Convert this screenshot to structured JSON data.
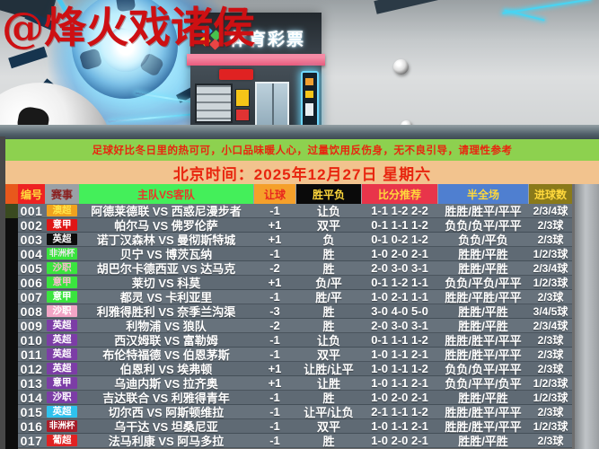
{
  "watermark": "@烽火戏诸侯",
  "hero": {
    "store_sign": "体育彩票",
    "store_sign_logo": "sports-lottery-logo"
  },
  "notice": {
    "text": "足球好比冬日里的热可可，小口品味暖人心，过量饮用反伤身，无不良引导，请理性参考",
    "bg": "#8dd14f",
    "fg": "#e8250f"
  },
  "date_bar": {
    "text": "北京时间：2025年12月27日 星期六",
    "bg": "#f2c38e",
    "fg": "#e8250f"
  },
  "table": {
    "headers": [
      {
        "label": "编号",
        "bg": "#ee2222",
        "fg": "#ffd83c"
      },
      {
        "label": "赛事",
        "bg": "#9aa0a6",
        "fg": "#8a1f1f"
      },
      {
        "label": "主队VS客队",
        "bg": "#44ef5a",
        "fg": "#e8382a"
      },
      {
        "label": "让球",
        "bg": "#f5a02a",
        "fg": "#e8281e"
      },
      {
        "label": "胜平负",
        "bg": "#0a0a0a",
        "fg": "#ffd83c"
      },
      {
        "label": "比分推荐",
        "bg": "#e8354a",
        "fg": "#ffd83c"
      },
      {
        "label": "半全场",
        "bg": "#4f7fd0",
        "fg": "#ffd83c"
      },
      {
        "label": "进球数",
        "bg": "#8a7a1a",
        "fg": "#ffd83c"
      }
    ],
    "rows": [
      {
        "no": "001",
        "league": "澳超",
        "tag_bg": "#f0a21e",
        "tag_fg": "#ffe44a",
        "teams": "阿德莱德联 VS 西惑尼漫步者",
        "handicap": "-1",
        "wdl": "让负",
        "scores": "1-1 1-2 2-2",
        "half_full": "胜胜/胜平/平平",
        "goals": "2/3/4球"
      },
      {
        "no": "002",
        "league": "意甲",
        "tag_bg": "#e01616",
        "tag_fg": "#ffffff",
        "teams": "帕尔马 VS 佛罗伦萨",
        "handicap": "+1",
        "wdl": "双平",
        "scores": "0-1 1-1 1-2",
        "half_full": "负负/负平/平平",
        "goals": "2/3球"
      },
      {
        "no": "003",
        "league": "英超",
        "tag_bg": "#0c0c0c",
        "tag_fg": "#ffffff",
        "teams": "诺丁汉森林 VS 曼彻斯特城",
        "handicap": "+1",
        "wdl": "负",
        "scores": "0-1 0-2 1-2",
        "half_full": "负负/平负",
        "goals": "2/3球"
      },
      {
        "no": "004",
        "league": "非洲杯",
        "tag_bg": "#3ae53e",
        "tag_fg": "#e9e9e9",
        "teams": "贝宁 VS 博茨瓦纳",
        "handicap": "-1",
        "wdl": "胜",
        "scores": "1-0 2-0 2-1",
        "half_full": "胜胜/平胜",
        "goals": "1/2/3球"
      },
      {
        "no": "005",
        "league": "沙职",
        "tag_bg": "#3ae53e",
        "tag_fg": "#ffb9d2",
        "teams": "胡巴尔卡德西亚 VS 达马克",
        "handicap": "-2",
        "wdl": "胜",
        "scores": "2-0 3-0 3-1",
        "half_full": "胜胜/平胜",
        "goals": "2/3/4球"
      },
      {
        "no": "006",
        "league": "意甲",
        "tag_bg": "#3ae53e",
        "tag_fg": "#ffb9d2",
        "teams": "莱切 VS 科莫",
        "handicap": "+1",
        "wdl": "负/平",
        "scores": "0-1 1-2 1-1",
        "half_full": "负负/平负/平平",
        "goals": "1/2/3球"
      },
      {
        "no": "007",
        "league": "意甲",
        "tag_bg": "#3ae53e",
        "tag_fg": "#ffffff",
        "teams": "都灵 VS 卡利亚里",
        "handicap": "-1",
        "wdl": "胜/平",
        "scores": "1-0 2-1 1-1",
        "half_full": "胜胜/平胜/平平",
        "goals": "2/3球"
      },
      {
        "no": "008",
        "league": "沙职",
        "tag_bg": "#f2a5c6",
        "tag_fg": "#ffffff",
        "teams": "利雅得胜利 VS 奈季兰沟渠",
        "handicap": "-3",
        "wdl": "胜",
        "scores": "3-0 4-0 5-0",
        "half_full": "胜胜/平胜",
        "goals": "3/4/5球"
      },
      {
        "no": "009",
        "league": "英超",
        "tag_bg": "#7c3da6",
        "tag_fg": "#ffffff",
        "teams": "利物浦 VS 狼队",
        "handicap": "-2",
        "wdl": "胜",
        "scores": "2-0 3-0 3-1",
        "half_full": "胜胜/平胜",
        "goals": "2/3/4球"
      },
      {
        "no": "010",
        "league": "英超",
        "tag_bg": "#7c3da6",
        "tag_fg": "#ffffff",
        "teams": "西汉姆联 VS 富勒姆",
        "handicap": "-1",
        "wdl": "让负",
        "scores": "0-1 1-1 1-2",
        "half_full": "胜胜/胜平/平平",
        "goals": "2/3球"
      },
      {
        "no": "011",
        "league": "英超",
        "tag_bg": "#7c3da6",
        "tag_fg": "#ffffff",
        "teams": "布伦特福德 VS 伯恩茅斯",
        "handicap": "-1",
        "wdl": "双平",
        "scores": "1-0 1-1 2-1",
        "half_full": "胜胜/胜平/平平",
        "goals": "2/3球"
      },
      {
        "no": "012",
        "league": "英超",
        "tag_bg": "#7c3da6",
        "tag_fg": "#ffffff",
        "teams": "伯恩利 VS 埃弗顿",
        "handicap": "+1",
        "wdl": "让胜/让平",
        "scores": "1-0 1-1 1-2",
        "half_full": "负负/负平/平平",
        "goals": "2/3球"
      },
      {
        "no": "013",
        "league": "意甲",
        "tag_bg": "#7c3da6",
        "tag_fg": "#ffffff",
        "teams": "乌迪内斯 VS 拉齐奥",
        "handicap": "+1",
        "wdl": "让胜",
        "scores": "1-0 1-1 2-1",
        "half_full": "负负/平平/负平",
        "goals": "1/2/3球"
      },
      {
        "no": "014",
        "league": "沙职",
        "tag_bg": "#7c3da6",
        "tag_fg": "#ffffff",
        "teams": "吉达联合 VS 利雅得青年",
        "handicap": "-1",
        "wdl": "胜",
        "scores": "1-0 2-0 2-1",
        "half_full": "胜胜/平胜",
        "goals": "1/2/3球"
      },
      {
        "no": "015",
        "league": "英超",
        "tag_bg": "#2ec2ee",
        "tag_fg": "#ffffff",
        "teams": "切尔西 VS 阿斯顿维拉",
        "handicap": "-1",
        "wdl": "让平/让负",
        "scores": "2-1 1-1 1-2",
        "half_full": "胜胜/胜平/平平",
        "goals": "2/3球"
      },
      {
        "no": "016",
        "league": "非洲杯",
        "tag_bg": "#a81c28",
        "tag_fg": "#ffffff",
        "teams": "乌干达 VS 坦桑尼亚",
        "handicap": "-1",
        "wdl": "双平",
        "scores": "1-0 1-1 2-1",
        "half_full": "胜胜/胜平/平平",
        "goals": "1/2/3球"
      },
      {
        "no": "017",
        "league": "葡超",
        "tag_bg": "#e02222",
        "tag_fg": "#ffffff",
        "teams": "法马利康 VS 阿马多拉",
        "handicap": "-1",
        "wdl": "胜",
        "scores": "1-0 2-0 2-1",
        "half_full": "胜胜/平胜",
        "goals": "2/3球"
      }
    ]
  }
}
